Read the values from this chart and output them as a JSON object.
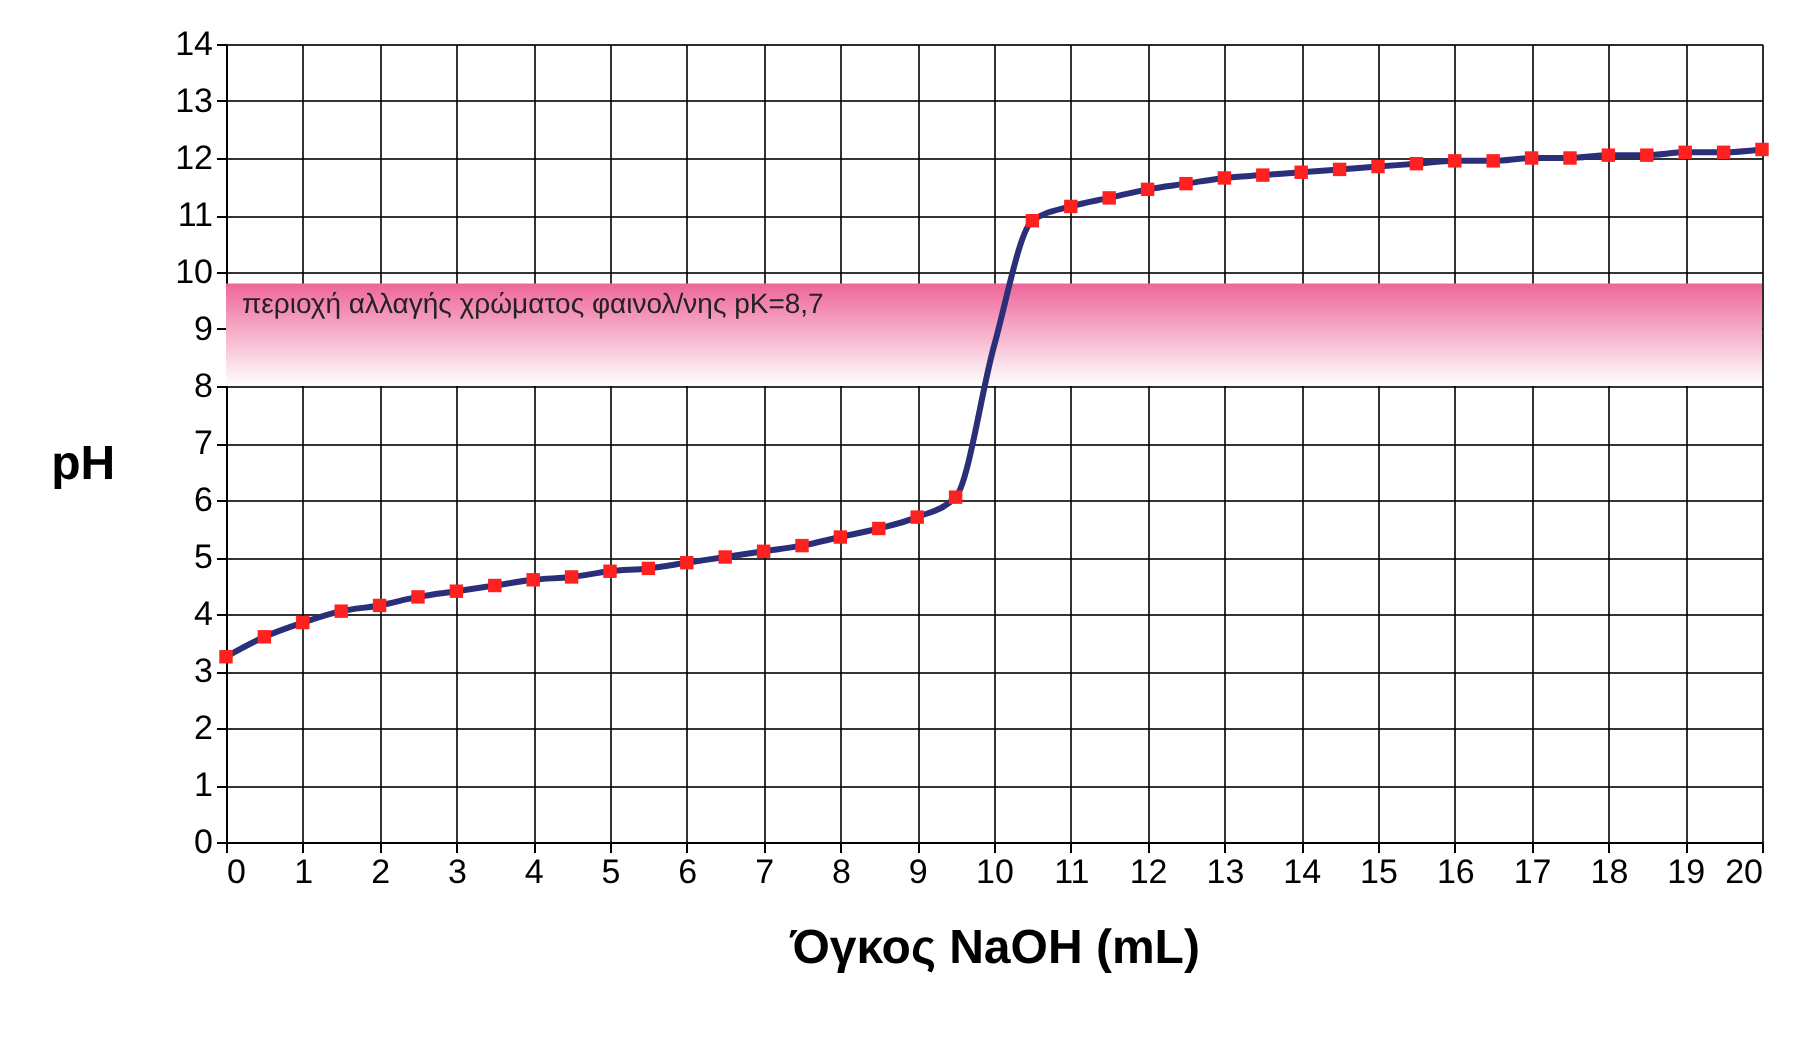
{
  "chart_data": {
    "type": "line",
    "xlabel": "Όγκος NaOH (mL)",
    "ylabel": "pH",
    "series": [
      {
        "color": "#2b2f7a",
        "x": [
          0,
          0.5,
          1,
          1.5,
          2,
          2.5,
          3,
          3.5,
          4,
          4.5,
          5,
          5.5,
          6,
          6.5,
          7,
          7.5,
          8,
          8.5,
          9,
          9.5,
          10,
          10.5,
          11,
          11.5,
          12,
          12.5,
          13,
          13.5,
          14,
          14.5,
          15,
          15.5,
          16,
          16.5,
          17,
          17.5,
          18,
          18.5,
          19,
          19.5,
          20
        ],
        "values": [
          3.25,
          3.6,
          3.85,
          4.05,
          4.15,
          4.3,
          4.4,
          4.5,
          4.6,
          4.65,
          4.75,
          4.8,
          4.9,
          5.0,
          5.1,
          5.2,
          5.35,
          5.5,
          5.7,
          6.05,
          8.7,
          10.9,
          11.15,
          11.3,
          11.45,
          11.55,
          11.65,
          11.7,
          11.75,
          11.8,
          11.85,
          11.9,
          11.95,
          11.95,
          12.0,
          12.0,
          12.05,
          12.05,
          12.1,
          12.1,
          12.15
        ]
      },
      {
        "type": "scatter",
        "color": "#ff2020",
        "marker": "square",
        "x": [
          0,
          0.5,
          1,
          1.5,
          2,
          2.5,
          3,
          3.5,
          4,
          4.5,
          5,
          5.5,
          6,
          6.5,
          7,
          7.5,
          8,
          8.5,
          9,
          9.5,
          10.5,
          11,
          11.5,
          12,
          12.5,
          13,
          13.5,
          14,
          14.5,
          15,
          15.5,
          16,
          16.5,
          17,
          17.5,
          18,
          18.5,
          19,
          19.5,
          20
        ],
        "values": [
          3.25,
          3.6,
          3.85,
          4.05,
          4.15,
          4.3,
          4.4,
          4.5,
          4.6,
          4.65,
          4.75,
          4.8,
          4.9,
          5.0,
          5.1,
          5.2,
          5.35,
          5.5,
          5.7,
          6.05,
          10.9,
          11.15,
          11.3,
          11.45,
          11.55,
          11.65,
          11.7,
          11.75,
          11.8,
          11.85,
          11.9,
          11.95,
          11.95,
          12.0,
          12.0,
          12.05,
          12.05,
          12.1,
          12.1,
          12.15
        ]
      }
    ],
    "bands": [
      {
        "axis": "y",
        "from": 8,
        "to": 9.8,
        "label": "περιοχή αλλαγής χρώματος φαινολ/νης pK=8,7",
        "color": "#ee6698"
      }
    ],
    "xlim": [
      0,
      20
    ],
    "xticks": [
      0,
      1,
      2,
      3,
      4,
      5,
      6,
      7,
      8,
      9,
      10,
      11,
      12,
      13,
      14,
      15,
      16,
      17,
      18,
      19,
      20
    ],
    "ylim": [
      0,
      14
    ],
    "yticks": [
      0,
      1,
      2,
      3,
      4,
      5,
      6,
      7,
      8,
      9,
      10,
      11,
      12,
      13,
      14
    ],
    "grid": true
  }
}
